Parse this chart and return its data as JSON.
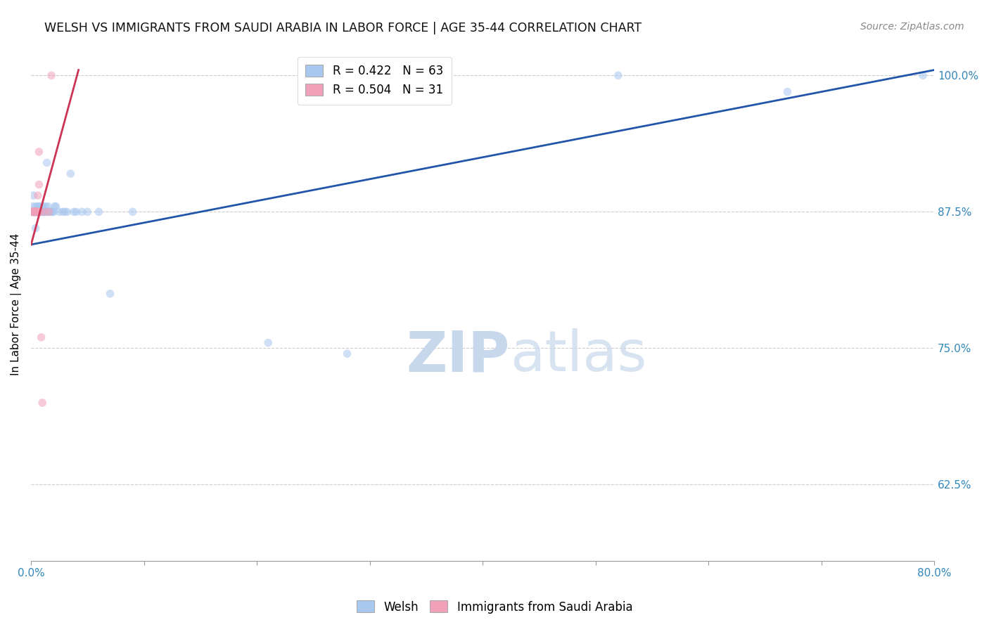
{
  "title": "WELSH VS IMMIGRANTS FROM SAUDI ARABIA IN LABOR FORCE | AGE 35-44 CORRELATION CHART",
  "source": "Source: ZipAtlas.com",
  "ylabel": "In Labor Force | Age 35-44",
  "xlim": [
    0.0,
    0.8
  ],
  "ylim": [
    0.555,
    1.025
  ],
  "xticks": [
    0.0,
    0.1,
    0.2,
    0.3,
    0.4,
    0.5,
    0.6,
    0.7,
    0.8
  ],
  "xticklabels": [
    "0.0%",
    "",
    "",
    "",
    "",
    "",
    "",
    "",
    "80.0%"
  ],
  "yticks": [
    0.625,
    0.75,
    0.875,
    1.0
  ],
  "yticklabels": [
    "62.5%",
    "75.0%",
    "87.5%",
    "100.0%"
  ],
  "welsh_R": 0.422,
  "welsh_N": 63,
  "saudi_R": 0.504,
  "saudi_N": 31,
  "welsh_color": "#a8c8f0",
  "welsh_line_color": "#2255aa",
  "saudi_color": "#f0a0b8",
  "saudi_line_color": "#cc3355",
  "marker_size": 70,
  "marker_alpha": 0.55,
  "watermark_color": "#dce8f5",
  "welsh_line_x": [
    0.0,
    0.8
  ],
  "welsh_line_y": [
    0.845,
    1.005
  ],
  "saudi_line_x": [
    0.0,
    0.042
  ],
  "saudi_line_y": [
    0.845,
    1.005
  ],
  "welsh_x": [
    0.001,
    0.001,
    0.002,
    0.002,
    0.003,
    0.003,
    0.003,
    0.003,
    0.004,
    0.004,
    0.004,
    0.005,
    0.005,
    0.005,
    0.005,
    0.006,
    0.006,
    0.006,
    0.006,
    0.007,
    0.007,
    0.007,
    0.008,
    0.008,
    0.008,
    0.009,
    0.009,
    0.01,
    0.01,
    0.01,
    0.011,
    0.011,
    0.012,
    0.012,
    0.013,
    0.013,
    0.014,
    0.015,
    0.015,
    0.016,
    0.017,
    0.018,
    0.019,
    0.02,
    0.021,
    0.022,
    0.025,
    0.028,
    0.03,
    0.032,
    0.035,
    0.038,
    0.04,
    0.045,
    0.05,
    0.06,
    0.07,
    0.09,
    0.21,
    0.28,
    0.52,
    0.67,
    0.79
  ],
  "welsh_y": [
    0.875,
    0.88,
    0.875,
    0.89,
    0.875,
    0.875,
    0.875,
    0.875,
    0.875,
    0.88,
    0.86,
    0.875,
    0.875,
    0.875,
    0.875,
    0.875,
    0.875,
    0.88,
    0.875,
    0.875,
    0.875,
    0.88,
    0.875,
    0.875,
    0.875,
    0.88,
    0.875,
    0.875,
    0.875,
    0.875,
    0.875,
    0.88,
    0.875,
    0.875,
    0.88,
    0.875,
    0.92,
    0.875,
    0.88,
    0.875,
    0.875,
    0.875,
    0.875,
    0.875,
    0.88,
    0.88,
    0.875,
    0.875,
    0.875,
    0.875,
    0.91,
    0.875,
    0.875,
    0.875,
    0.875,
    0.875,
    0.8,
    0.875,
    0.755,
    0.745,
    1.0,
    0.985,
    1.0
  ],
  "saudi_x": [
    0.001,
    0.001,
    0.001,
    0.002,
    0.002,
    0.002,
    0.002,
    0.003,
    0.003,
    0.003,
    0.003,
    0.003,
    0.004,
    0.004,
    0.004,
    0.004,
    0.005,
    0.005,
    0.005,
    0.005,
    0.006,
    0.006,
    0.006,
    0.007,
    0.007,
    0.008,
    0.009,
    0.01,
    0.012,
    0.016,
    0.018
  ],
  "saudi_y": [
    0.875,
    0.875,
    0.875,
    0.875,
    0.875,
    0.875,
    0.875,
    0.875,
    0.875,
    0.875,
    0.875,
    0.875,
    0.875,
    0.875,
    0.875,
    0.875,
    0.875,
    0.875,
    0.875,
    0.875,
    0.875,
    0.89,
    0.875,
    0.9,
    0.93,
    0.875,
    0.76,
    0.7,
    0.875,
    0.875,
    1.0
  ]
}
